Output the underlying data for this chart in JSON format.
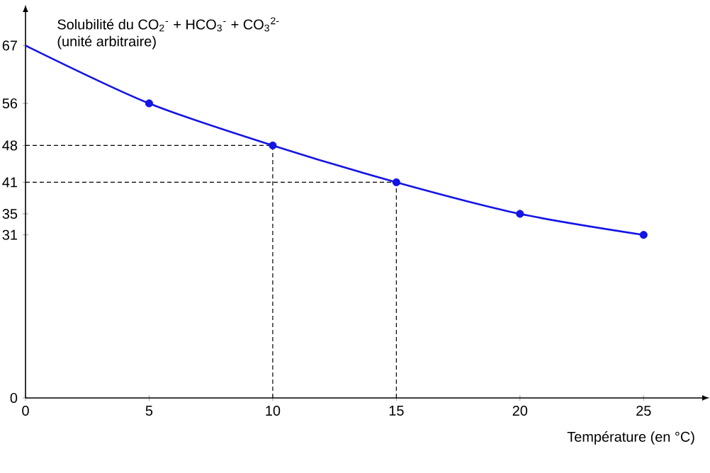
{
  "chart_data": {
    "type": "line",
    "ylabel": "Solubilité du CO$_{2}$$^{-}$ + HCO$_{3}$$^{-}$ + CO$_{3}$$^{2-}$",
    "annotations": [
      "(unité arbitraire)"
    ],
    "xlabel": "Température (en °C)",
    "series": [
      {
        "x": [
          0,
          5,
          10,
          15,
          20,
          25
        ],
        "values": [
          67,
          56,
          48,
          41,
          35,
          31
        ],
        "color": "#1414e6",
        "marker": "none",
        "line_style": "solid"
      },
      {
        "type": "scatter",
        "x": [
          5,
          10,
          15,
          20,
          25
        ],
        "values": [
          56,
          48,
          41,
          35,
          31
        ],
        "color": "#1414e6",
        "marker": "circle"
      }
    ],
    "xlim": [
      0,
      27.4
    ],
    "ylim": [
      0,
      73.5
    ],
    "xticks": [
      0,
      5,
      10,
      15,
      20,
      25
    ],
    "yticks": [
      0,
      31,
      35,
      41,
      48,
      56,
      67
    ],
    "ref_lines": [
      {
        "axis": "x",
        "value": 10,
        "line_style": "dashed",
        "color": "#000000"
      },
      {
        "axis": "x",
        "value": 15,
        "line_style": "dashed",
        "color": "#000000"
      },
      {
        "axis": "y",
        "value": 48,
        "line_style": "dashed",
        "color": "#000000"
      },
      {
        "axis": "y",
        "value": 41,
        "line_style": "dashed",
        "color": "#000000"
      }
    ],
    "grid": false
  }
}
